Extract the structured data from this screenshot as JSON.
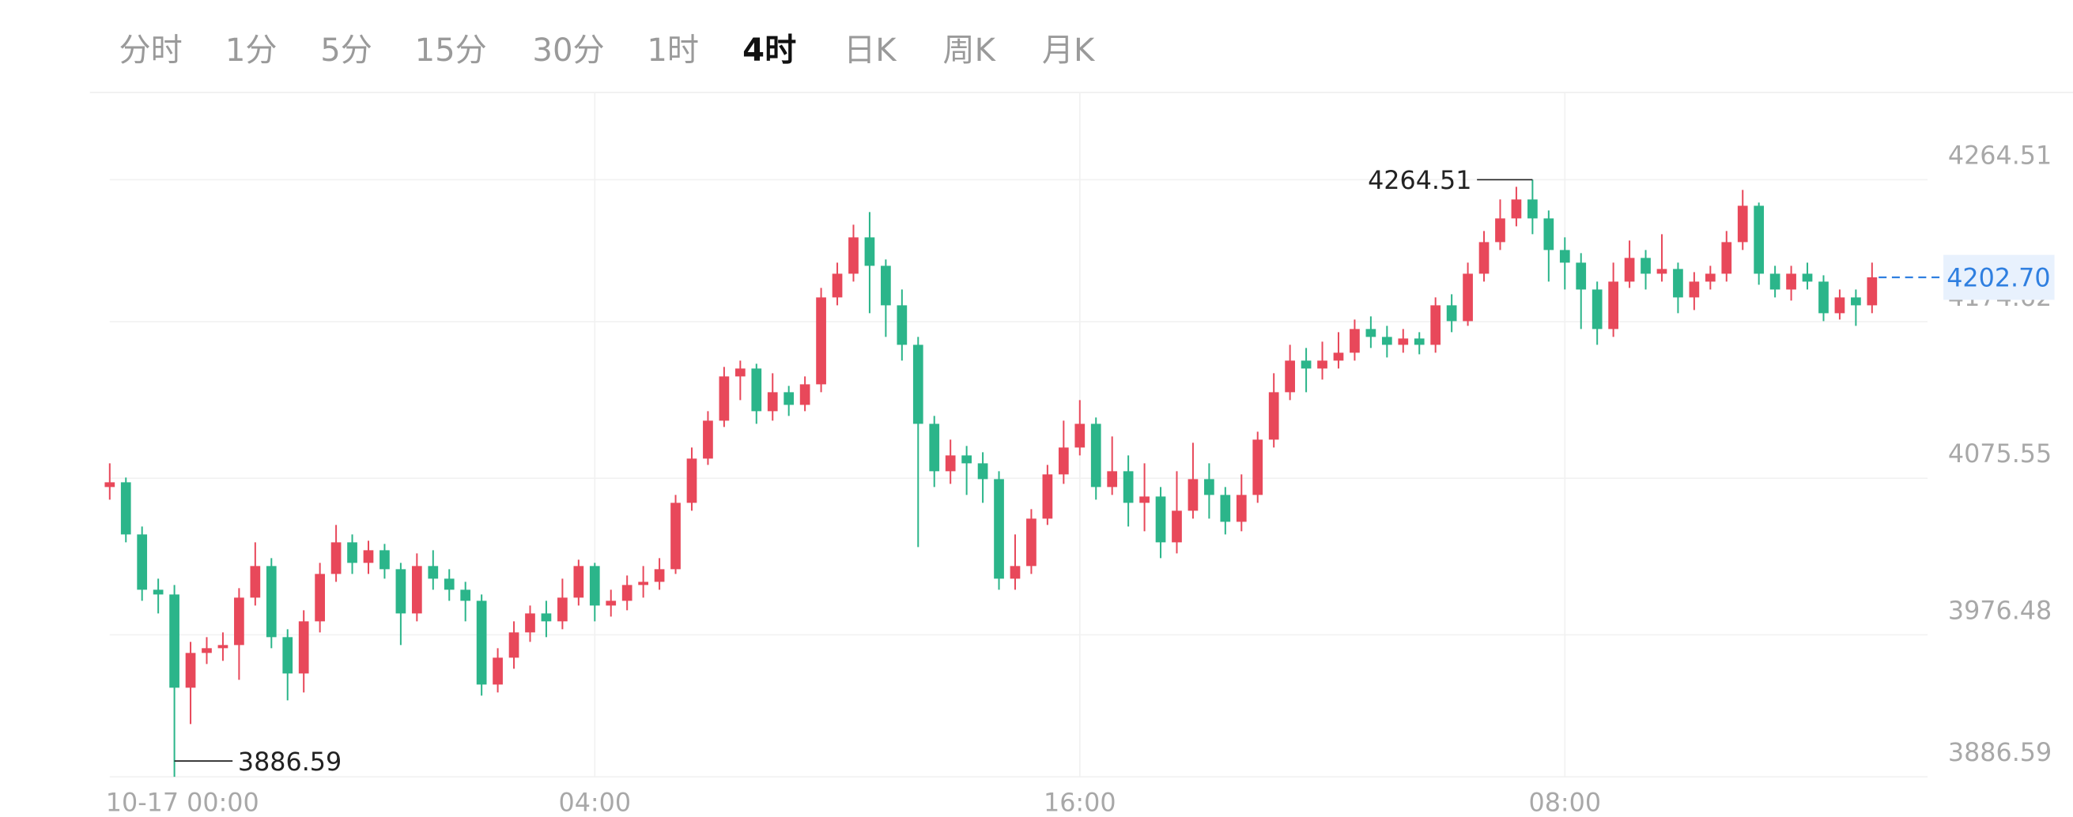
{
  "tabs": [
    "分时",
    "1分",
    "5分",
    "15分",
    "30分",
    "1时",
    "4时",
    "日K",
    "周K",
    "月K"
  ],
  "active_tab": 6,
  "chart_data": {
    "type": "candlestick",
    "up_color": "#e8485a",
    "down_color": "#2bb58a",
    "grid": true,
    "ylim": [
      3886.59,
      4264.51
    ],
    "yticks": [
      3886.59,
      3976.48,
      4075.55,
      4174.62,
      4264.51
    ],
    "last_price": {
      "value": 4202.7,
      "label": "4202.70"
    },
    "categories": [
      "10-17 00:00",
      null,
      null,
      null,
      null,
      null,
      null,
      null,
      null,
      null,
      null,
      null,
      null,
      null,
      null,
      null,
      null,
      null,
      null,
      null,
      null,
      null,
      null,
      null,
      null,
      null,
      null,
      null,
      null,
      null,
      "04:00",
      null,
      null,
      null,
      null,
      null,
      null,
      null,
      null,
      null,
      null,
      null,
      null,
      null,
      null,
      null,
      null,
      null,
      null,
      null,
      null,
      null,
      null,
      null,
      null,
      null,
      null,
      null,
      null,
      null,
      "16:00",
      null,
      null,
      null,
      null,
      null,
      null,
      null,
      null,
      null,
      null,
      null,
      null,
      null,
      null,
      null,
      null,
      null,
      null,
      null,
      null,
      null,
      null,
      null,
      null,
      null,
      null,
      null,
      null,
      null,
      "08:00",
      null,
      null,
      null,
      null,
      null,
      null,
      null,
      null,
      null,
      null,
      null,
      null,
      null,
      null,
      null,
      null,
      null,
      null,
      null
    ],
    "open": [
      4070,
      4073,
      4040,
      4005,
      4002,
      3943,
      3965,
      3968,
      3970,
      4000,
      4020,
      3975,
      3952,
      3985,
      4015,
      4035,
      4022,
      4030,
      4018,
      3990,
      4020,
      4012,
      4005,
      3998,
      3945,
      3962,
      3978,
      3990,
      3985,
      4000,
      4020,
      3995,
      3998,
      4008,
      4010,
      4018,
      4060,
      4088,
      4112,
      4140,
      4145,
      4118,
      4130,
      4122,
      4135,
      4190,
      4205,
      4228,
      4210,
      4185,
      4160,
      4110,
      4080,
      4090,
      4085,
      4075,
      4012,
      4020,
      4050,
      4078,
      4095,
      4110,
      4070,
      4080,
      4060,
      4064,
      4035,
      4055,
      4075,
      4065,
      4048,
      4065,
      4100,
      4130,
      4150,
      4145,
      4150,
      4155,
      4170,
      4165,
      4160,
      4164,
      4160,
      4185,
      4175,
      4205,
      4225,
      4240,
      4252,
      4240,
      4220,
      4212,
      4195,
      4170,
      4200,
      4215,
      4205,
      4208,
      4190,
      4200,
      4205,
      4225,
      4248,
      4205,
      4195,
      4205,
      4200,
      4180,
      4190,
      4185
    ],
    "close": [
      4073,
      4040,
      4005,
      4002,
      3943,
      3965,
      3968,
      3970,
      4000,
      4020,
      3975,
      3952,
      3985,
      4015,
      4035,
      4022,
      4030,
      4018,
      3990,
      4020,
      4012,
      4005,
      3998,
      3945,
      3962,
      3978,
      3990,
      3985,
      4000,
      4020,
      3995,
      3998,
      4008,
      4010,
      4018,
      4060,
      4088,
      4112,
      4140,
      4145,
      4118,
      4130,
      4122,
      4135,
      4190,
      4205,
      4228,
      4210,
      4185,
      4160,
      4110,
      4080,
      4090,
      4085,
      4075,
      4012,
      4020,
      4050,
      4078,
      4095,
      4110,
      4070,
      4080,
      4060,
      4064,
      4035,
      4055,
      4075,
      4065,
      4048,
      4065,
      4100,
      4130,
      4150,
      4145,
      4150,
      4155,
      4170,
      4165,
      4160,
      4164,
      4160,
      4185,
      4175,
      4205,
      4225,
      4240,
      4252,
      4240,
      4220,
      4212,
      4195,
      4170,
      4200,
      4215,
      4205,
      4208,
      4190,
      4200,
      4205,
      4225,
      4248,
      4205,
      4195,
      4205,
      4200,
      4180,
      4190,
      4185,
      4202.7
    ],
    "high": [
      4085,
      4076,
      4045,
      4012,
      4008,
      3972,
      3975,
      3978,
      4006,
      4035,
      4025,
      3980,
      3992,
      4022,
      4046,
      4040,
      4036,
      4034,
      4022,
      4028,
      4030,
      4018,
      4010,
      4002,
      3968,
      3985,
      3995,
      3998,
      4012,
      4024,
      4022,
      4005,
      4014,
      4020,
      4025,
      4065,
      4095,
      4118,
      4146,
      4150,
      4148,
      4142,
      4134,
      4140,
      4196,
      4212,
      4236,
      4244,
      4214,
      4195,
      4165,
      4115,
      4100,
      4096,
      4092,
      4080,
      4040,
      4056,
      4084,
      4112,
      4125,
      4114,
      4102,
      4090,
      4085,
      4070,
      4080,
      4098,
      4085,
      4070,
      4078,
      4105,
      4142,
      4160,
      4158,
      4162,
      4168,
      4176,
      4178,
      4172,
      4170,
      4168,
      4190,
      4192,
      4212,
      4232,
      4252,
      4260,
      4264.51,
      4245,
      4228,
      4218,
      4200,
      4212,
      4226,
      4220,
      4230,
      4212,
      4206,
      4210,
      4232,
      4258,
      4250,
      4210,
      4210,
      4212,
      4204,
      4195,
      4195,
      4212
    ],
    "low": [
      4062,
      4035,
      3998,
      3990,
      3886.59,
      3920,
      3958,
      3960,
      3948,
      3995,
      3968,
      3935,
      3940,
      3978,
      4010,
      4015,
      4015,
      4012,
      3970,
      3985,
      4005,
      3998,
      3985,
      3938,
      3940,
      3955,
      3972,
      3975,
      3980,
      3995,
      3985,
      3988,
      3992,
      4000,
      4005,
      4015,
      4055,
      4084,
      4108,
      4125,
      4110,
      4112,
      4115,
      4118,
      4130,
      4185,
      4200,
      4180,
      4165,
      4150,
      4032,
      4070,
      4072,
      4065,
      4060,
      4005,
      4005,
      4015,
      4046,
      4072,
      4090,
      4062,
      4065,
      4045,
      4042,
      4025,
      4028,
      4050,
      4050,
      4040,
      4042,
      4060,
      4095,
      4125,
      4130,
      4138,
      4145,
      4150,
      4158,
      4152,
      4155,
      4154,
      4155,
      4168,
      4172,
      4200,
      4220,
      4235,
      4230,
      4200,
      4195,
      4170,
      4160,
      4165,
      4196,
      4195,
      4200,
      4180,
      4182,
      4195,
      4200,
      4220,
      4198,
      4190,
      4188,
      4195,
      4175,
      4176,
      4172,
      4180
    ]
  }
}
